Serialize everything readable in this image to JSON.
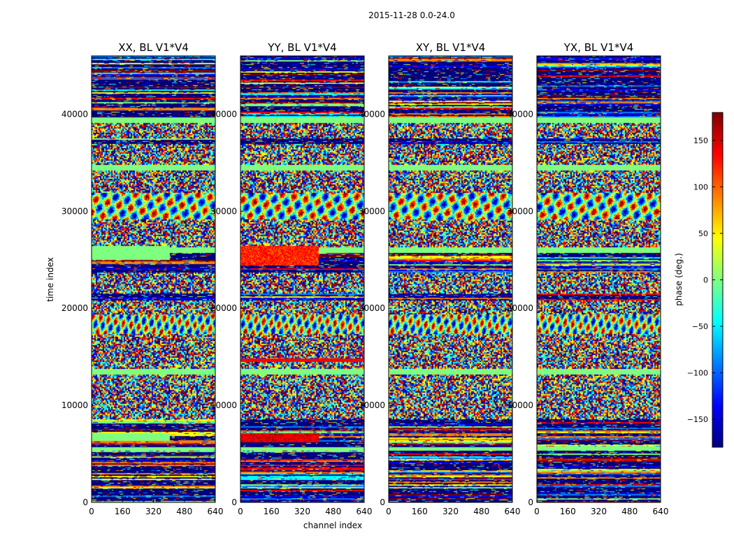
{
  "suptitle": "2015-11-28 0.0-24.0",
  "chart_data": {
    "type": "heatmap",
    "panels": [
      {
        "title": "XX, BL V1*V4"
      },
      {
        "title": "YY, BL V1*V4"
      },
      {
        "title": "XY, BL V1*V4"
      },
      {
        "title": "YX, BL V1*V4"
      }
    ],
    "xlabel": "channel index",
    "ylabel": "time index",
    "xlim": [
      0,
      640
    ],
    "ylim": [
      0,
      46000
    ],
    "xticks": [
      0,
      160,
      320,
      480,
      640
    ],
    "xtick_labels": [
      "0",
      "160",
      "320",
      "480",
      "640"
    ],
    "yticks": [
      0,
      10000,
      20000,
      30000,
      40000
    ],
    "ytick_labels": [
      "0",
      "10000",
      "20000",
      "30000",
      "40000"
    ],
    "colorbar": {
      "label": "phase (deg.)",
      "range": [
        -180,
        180
      ],
      "ticks": [
        150,
        100,
        50,
        0,
        -50,
        -100,
        -150
      ],
      "tick_labels": [
        "150",
        "100",
        "50",
        "0",
        "−50",
        "−100",
        "−150"
      ],
      "colormap": "jet"
    }
  },
  "colors": {
    "jet": [
      "#00007f",
      "#0000ff",
      "#007fff",
      "#00ffff",
      "#7fff7f",
      "#ffff00",
      "#ff7f00",
      "#ff0000",
      "#7f0000"
    ]
  }
}
